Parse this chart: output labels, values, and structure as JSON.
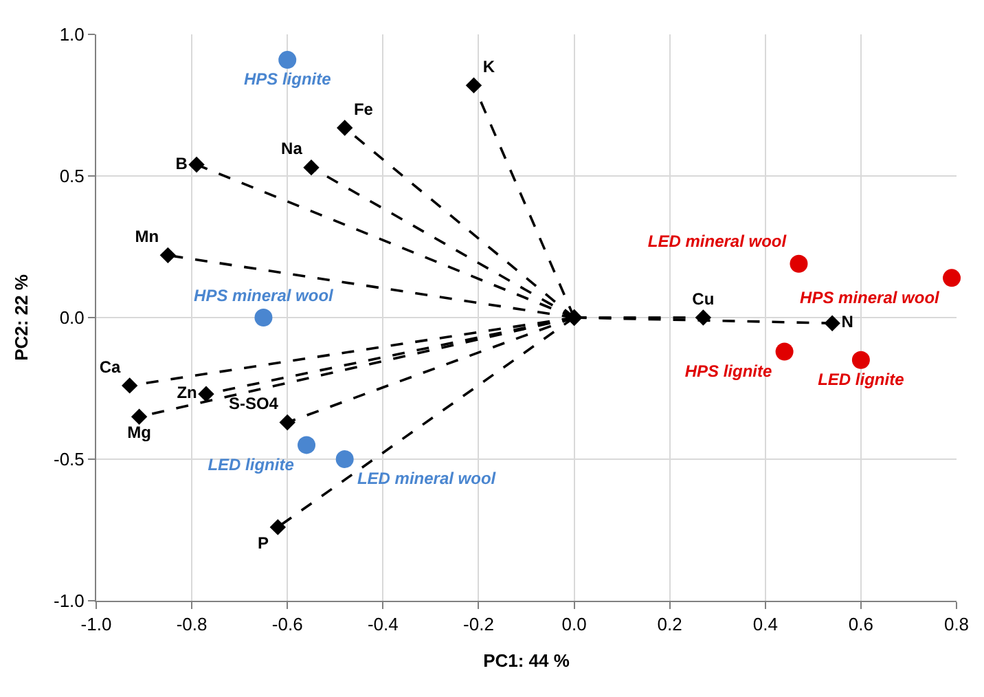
{
  "chart_data": {
    "type": "line",
    "xlabel": "PC1: 44 %",
    "ylabel": "PC2: 22 %",
    "xlim": [
      -1.0,
      0.8
    ],
    "xticks": [
      {
        "value": -1.0,
        "label": "-1.0"
      },
      {
        "value": -0.8,
        "label": "-0.8"
      },
      {
        "value": -0.6,
        "label": "-0.6"
      },
      {
        "value": -0.4,
        "label": "-0.4"
      },
      {
        "value": -0.2,
        "label": "-0.2"
      },
      {
        "value": 0,
        "label": "0.0"
      },
      {
        "value": 0.2,
        "label": "0.2"
      },
      {
        "value": 0.4,
        "label": "0.4"
      },
      {
        "value": 0.6,
        "label": "0.6"
      },
      {
        "value": 0.8,
        "label": "0.8"
      }
    ],
    "ylim": [
      -1.0,
      1.0
    ],
    "yticks": [
      {
        "value": -1.0,
        "label": "-1.0"
      },
      {
        "value": -0.5,
        "label": "-0.5"
      },
      {
        "value": 0,
        "label": "0.0"
      },
      {
        "value": 0.5,
        "label": "0.5"
      },
      {
        "value": 1.0,
        "label": "1.0"
      }
    ],
    "grid": true,
    "legend": false,
    "line_style": "dashed",
    "series": [
      {
        "name": "K",
        "marker": "diamond",
        "color": "#000000",
        "x": [
          0,
          -0.21
        ],
        "values": [
          0,
          0.82
        ]
      },
      {
        "name": "Fe",
        "marker": "diamond",
        "color": "#000000",
        "x": [
          0,
          -0.48
        ],
        "values": [
          0,
          0.67
        ]
      },
      {
        "name": "Na",
        "marker": "diamond",
        "color": "#000000",
        "x": [
          0,
          -0.55
        ],
        "values": [
          0,
          0.53
        ]
      },
      {
        "name": "B",
        "marker": "diamond",
        "color": "#000000",
        "x": [
          0,
          -0.79
        ],
        "values": [
          0,
          0.54
        ]
      },
      {
        "name": "Mn",
        "marker": "diamond",
        "color": "#000000",
        "x": [
          0,
          -0.85
        ],
        "values": [
          0,
          0.22
        ]
      },
      {
        "name": "Ca",
        "marker": "diamond",
        "color": "#000000",
        "x": [
          0,
          -0.93
        ],
        "values": [
          0,
          -0.24
        ]
      },
      {
        "name": "Zn",
        "marker": "diamond",
        "color": "#000000",
        "x": [
          0,
          -0.77
        ],
        "values": [
          0,
          -0.27
        ]
      },
      {
        "name": "Mg",
        "marker": "diamond",
        "color": "#000000",
        "x": [
          0,
          -0.91
        ],
        "values": [
          0,
          -0.35
        ]
      },
      {
        "name": "S-SO4",
        "marker": "diamond",
        "color": "#000000",
        "x": [
          0,
          -0.6
        ],
        "values": [
          0,
          -0.37
        ]
      },
      {
        "name": "P",
        "marker": "diamond",
        "color": "#000000",
        "x": [
          0,
          -0.62
        ],
        "values": [
          0,
          -0.74
        ]
      },
      {
        "name": "Cu",
        "marker": "diamond",
        "color": "#000000",
        "x": [
          0,
          0.27
        ],
        "values": [
          0,
          0.0
        ]
      },
      {
        "name": "N",
        "marker": "diamond",
        "color": "#000000",
        "x": [
          0,
          0.54
        ],
        "values": [
          0,
          -0.02
        ]
      },
      {
        "name": "HPS lignite",
        "type": "scatter",
        "marker": "circle",
        "color": "#4a86d0",
        "x": [
          -0.6
        ],
        "values": [
          0.91
        ]
      },
      {
        "name": "HPS mineral wool",
        "type": "scatter",
        "marker": "circle",
        "color": "#4a86d0",
        "x": [
          -0.65
        ],
        "values": [
          0.0
        ]
      },
      {
        "name": "LED lignite",
        "type": "scatter",
        "marker": "circle",
        "color": "#4a86d0",
        "x": [
          -0.56
        ],
        "values": [
          -0.45
        ]
      },
      {
        "name": "LED mineral wool",
        "type": "scatter",
        "marker": "circle",
        "color": "#4a86d0",
        "x": [
          -0.48
        ],
        "values": [
          -0.5
        ]
      },
      {
        "name": "LED mineral wool",
        "type": "scatter",
        "marker": "circle",
        "color": "#e00000",
        "x": [
          0.47
        ],
        "values": [
          0.19
        ]
      },
      {
        "name": "HPS mineral wool",
        "type": "scatter",
        "marker": "circle",
        "color": "#e00000",
        "x": [
          0.79
        ],
        "values": [
          0.14
        ]
      },
      {
        "name": "HPS lignite",
        "type": "scatter",
        "marker": "circle",
        "color": "#e00000",
        "x": [
          0.44
        ],
        "values": [
          -0.12
        ]
      },
      {
        "name": "LED lignite",
        "type": "scatter",
        "marker": "circle",
        "color": "#e00000",
        "x": [
          0.6
        ],
        "values": [
          -0.15
        ]
      }
    ]
  }
}
